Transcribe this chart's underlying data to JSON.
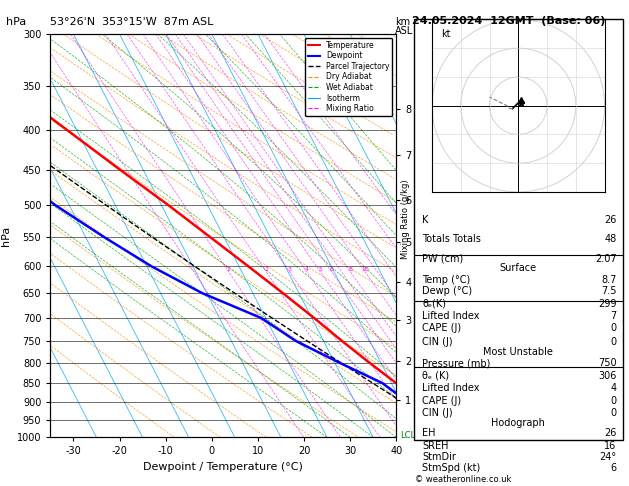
{
  "title_left": "53°26'N  353°15'W  87m ASL",
  "title_right": "24.05.2024  12GMT  (Base: 06)",
  "xlabel": "Dewpoint / Temperature (°C)",
  "ylabel_left": "hPa",
  "ylabel_right": "km\nASL",
  "pressure_ticks": [
    300,
    350,
    400,
    450,
    500,
    550,
    600,
    650,
    700,
    750,
    800,
    850,
    900,
    950,
    1000
  ],
  "temp_min": -35,
  "temp_max": 40,
  "temp_ticks": [
    -30,
    -20,
    -10,
    0,
    10,
    20,
    30,
    40
  ],
  "km_ticks": [
    1,
    2,
    3,
    4,
    5,
    6,
    7,
    8
  ],
  "km_pressures": [
    895,
    795,
    705,
    628,
    558,
    492,
    430,
    375
  ],
  "lcl_pressure": 995,
  "color_temp": "#ff0000",
  "color_dewp": "#0000ff",
  "color_parcel": "#000000",
  "color_dry_adiabat": "#ff8c00",
  "color_wet_adiabat": "#00aa00",
  "color_isotherm": "#00aaff",
  "color_mixing": "#ff00ff",
  "color_bg": "#ffffff",
  "stats_K": 26,
  "stats_TT": 48,
  "stats_PW": 2.07,
  "surf_temp": 8.7,
  "surf_dewp": 7.5,
  "surf_theta_e": 299,
  "surf_li": 7,
  "surf_cape": 0,
  "surf_cin": 0,
  "mu_pressure": 750,
  "mu_theta_e": 306,
  "mu_li": 4,
  "mu_cape": 0,
  "mu_cin": 0,
  "hodo_EH": 26,
  "hodo_SREH": 16,
  "hodo_StmDir": 24,
  "hodo_StmSpd": 6,
  "copyright": "© weatheronline.co.uk"
}
